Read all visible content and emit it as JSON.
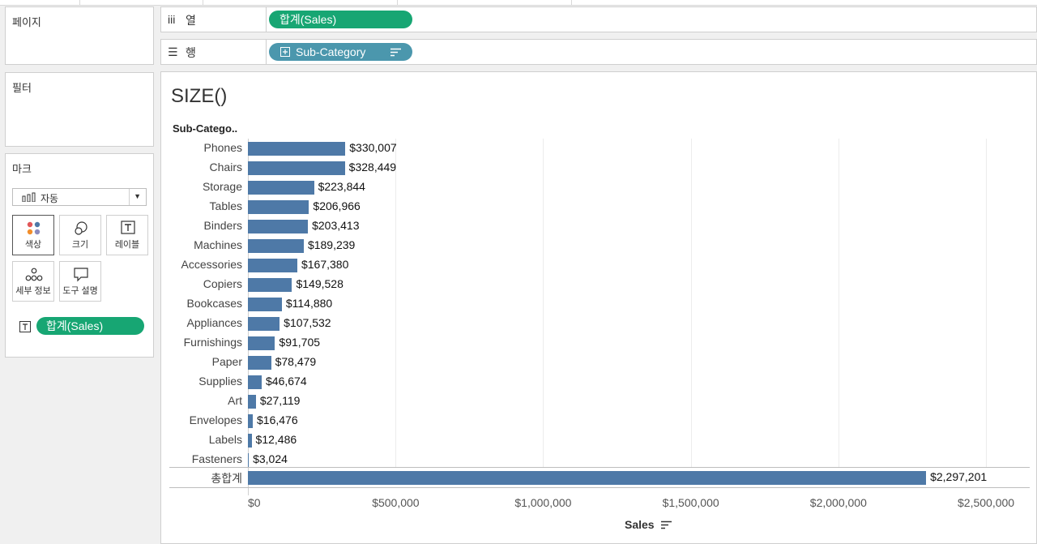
{
  "shelves": {
    "pages_label": "페이지",
    "filters_label": "필터",
    "columns_label": "열",
    "rows_label": "행",
    "columns_pill": "합계(Sales)",
    "rows_pill": "Sub-Category"
  },
  "marks": {
    "title": "마크",
    "mark_type": "자동",
    "color_label": "색상",
    "size_label": "크기",
    "label_label": "레이블",
    "detail_label": "세부 정보",
    "tooltip_label": "도구 설명",
    "label_pill": "합계(Sales)"
  },
  "view": {
    "title": "SIZE()",
    "total_label": "총합계",
    "total_value_label": "$2,297,201"
  },
  "colors": {
    "bar": "#4e79a7",
    "pill_green": "#17a673",
    "pill_teal": "#4b97ad"
  },
  "chart_data": {
    "type": "bar",
    "orientation": "horizontal",
    "title": "SIZE()",
    "ylabel": "Sub-Catego..",
    "xlabel": "Sales",
    "categories": [
      "Phones",
      "Chairs",
      "Storage",
      "Tables",
      "Binders",
      "Machines",
      "Accessories",
      "Copiers",
      "Bookcases",
      "Appliances",
      "Furnishings",
      "Paper",
      "Supplies",
      "Art",
      "Envelopes",
      "Labels",
      "Fasteners"
    ],
    "values": [
      330007,
      328449,
      223844,
      206966,
      203413,
      189239,
      167380,
      149528,
      114880,
      107532,
      91705,
      78479,
      46674,
      27119,
      16476,
      12486,
      3024
    ],
    "value_labels": [
      "$330,007",
      "$328,449",
      "$223,844",
      "$206,966",
      "$203,413",
      "$189,239",
      "$167,380",
      "$149,528",
      "$114,880",
      "$107,532",
      "$91,705",
      "$78,479",
      "$46,674",
      "$27,119",
      "$16,476",
      "$12,486",
      "$3,024"
    ],
    "grand_total": 2297201,
    "xlim": [
      0,
      2500000
    ],
    "xticks": [
      0,
      500000,
      1000000,
      1500000,
      2000000,
      2500000
    ],
    "xtick_labels": [
      "$0",
      "$500,000",
      "$1,000,000",
      "$1,500,000",
      "$2,000,000",
      "$2,500,000"
    ],
    "grid": true
  }
}
